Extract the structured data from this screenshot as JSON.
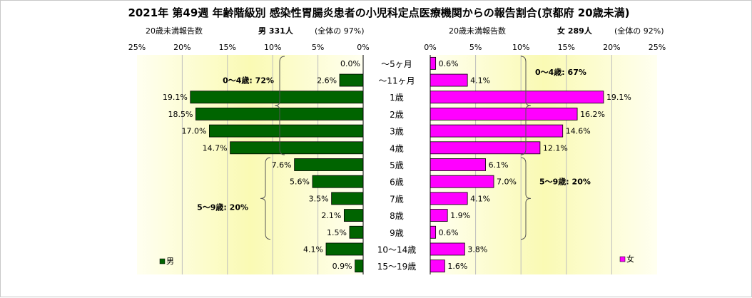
{
  "chart_data": {
    "type": "bar",
    "title": "2021年 第49週 年齢階級別 感染性胃腸炎患者の小児科定点医療機関からの報告割合(京都府 20歳未満)",
    "categories": [
      "～5ヶ月",
      "～11ヶ月",
      "1歳",
      "2歳",
      "3歳",
      "4歳",
      "5歳",
      "6歳",
      "7歳",
      "8歳",
      "9歳",
      "10～14歳",
      "15～19歳"
    ],
    "xlim": [
      0,
      25
    ],
    "x_ticks": [
      "0%",
      "5%",
      "10%",
      "15%",
      "20%",
      "25%"
    ],
    "grid": true,
    "series": [
      {
        "name": "男",
        "header_label": "20歳未満報告数",
        "header_count": "男 331人",
        "header_share": "(全体の 97%)",
        "color": "#006400",
        "values": [
          0.0,
          2.6,
          19.1,
          18.5,
          17.0,
          14.7,
          7.6,
          5.6,
          3.5,
          2.1,
          1.5,
          4.1,
          0.9
        ],
        "labels": [
          "0.0%",
          "2.6%",
          "19.1%",
          "18.5%",
          "17.0%",
          "14.7%",
          "7.6%",
          "5.6%",
          "3.5%",
          "2.1%",
          "1.5%",
          "4.1%",
          "0.9%"
        ],
        "groups": [
          {
            "label": "0～4歳: 72%",
            "from": 0,
            "to": 5
          },
          {
            "label": "5～9歳: 20%",
            "from": 6,
            "to": 10
          }
        ],
        "legend": "男"
      },
      {
        "name": "女",
        "header_label": "20歳未満報告数",
        "header_count": "女 289人",
        "header_share": "(全体の 92%)",
        "color": "#ff00ff",
        "values": [
          0.6,
          4.1,
          19.1,
          16.2,
          14.6,
          12.1,
          6.1,
          7.0,
          4.1,
          1.9,
          0.6,
          3.8,
          1.6
        ],
        "labels": [
          "0.6%",
          "4.1%",
          "19.1%",
          "16.2%",
          "14.6%",
          "12.1%",
          "6.1%",
          "7.0%",
          "4.1%",
          "1.9%",
          "0.6%",
          "3.8%",
          "1.6%"
        ],
        "groups": [
          {
            "label": "0～4歳: 67%",
            "from": 0,
            "to": 5
          },
          {
            "label": "5～9歳: 20%",
            "from": 6,
            "to": 10
          }
        ],
        "legend": "女"
      }
    ]
  }
}
